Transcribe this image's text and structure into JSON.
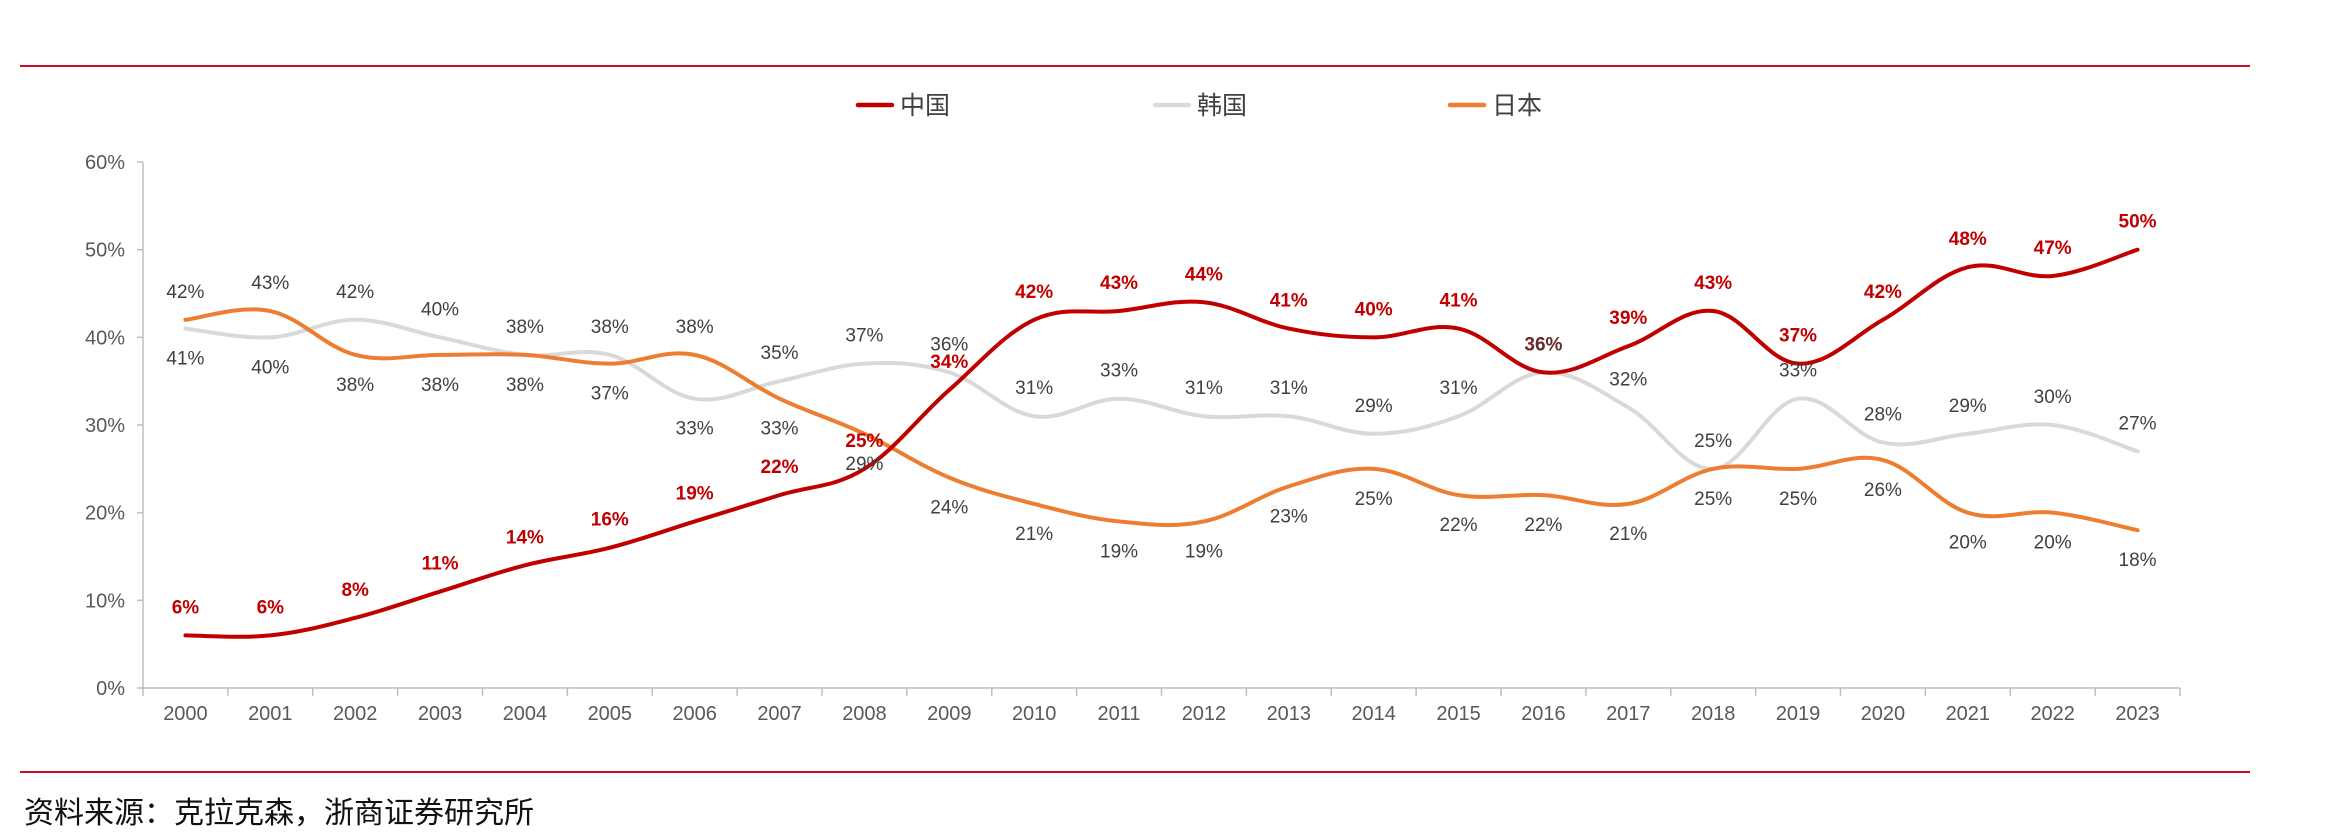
{
  "source_note": "资料来源：克拉克森，浙商证券研究所",
  "colors": {
    "china": "#c00000",
    "korea": "#d9d9d9",
    "japan": "#ed7d31",
    "rule": "#c8102e"
  },
  "chart_data": {
    "type": "line",
    "title": "",
    "xlabel": "",
    "ylabel": "",
    "ylim": [
      0,
      60
    ],
    "y_ticks": [
      "0%",
      "10%",
      "20%",
      "30%",
      "40%",
      "50%",
      "60%"
    ],
    "legend_position": "top-center",
    "grid": false,
    "x": [
      "2000",
      "2001",
      "2002",
      "2003",
      "2004",
      "2005",
      "2006",
      "2007",
      "2008",
      "2009",
      "2010",
      "2011",
      "2012",
      "2013",
      "2014",
      "2015",
      "2016",
      "2017",
      "2018",
      "2019",
      "2020",
      "2021",
      "2022",
      "2023"
    ],
    "series": [
      {
        "name": "中国",
        "color": "#c00000",
        "values": [
          6,
          6,
          8,
          11,
          14,
          16,
          19,
          22,
          25,
          34,
          42,
          43,
          44,
          41,
          40,
          41,
          36,
          39,
          43,
          37,
          42,
          48,
          47,
          50
        ],
        "labels": [
          "6%",
          "6%",
          "8%",
          "11%",
          "14%",
          "16%",
          "19%",
          "22%",
          "25%",
          "34%",
          "42%",
          "43%",
          "44%",
          "41%",
          "40%",
          "41%",
          "36%",
          "39%",
          "43%",
          "37%",
          "42%",
          "48%",
          "47%",
          "50%"
        ]
      },
      {
        "name": "韩国",
        "color": "#d9d9d9",
        "values": [
          41,
          40,
          42,
          40,
          38,
          38,
          33,
          35,
          37,
          36,
          31,
          33,
          31,
          31,
          29,
          31,
          36,
          32,
          25,
          33,
          28,
          29,
          30,
          27
        ],
        "labels": [
          "41%",
          "40%",
          "42%",
          "40%",
          "38%",
          "38%",
          "33%",
          "35%",
          "37%",
          "36%",
          "31%",
          "33%",
          "31%",
          "31%",
          "29%",
          "31%",
          "36%",
          "32%",
          "25%",
          "33%",
          "28%",
          "29%",
          "30%",
          "27%"
        ]
      },
      {
        "name": "日本",
        "color": "#ed7d31",
        "values": [
          42,
          43,
          38,
          38,
          38,
          37,
          38,
          33,
          29,
          24,
          21,
          19,
          19,
          23,
          25,
          22,
          22,
          21,
          25,
          25,
          26,
          20,
          20,
          18
        ],
        "labels": [
          "42%",
          "43%",
          "38%",
          "38%",
          "38%",
          "37%",
          "38%",
          "33%",
          "29%",
          "24%",
          "21%",
          "19%",
          "19%",
          "23%",
          "25%",
          "22%",
          "22%",
          "21%",
          "25%",
          "25%",
          "26%",
          "20%",
          "20%",
          "18%"
        ]
      }
    ]
  }
}
